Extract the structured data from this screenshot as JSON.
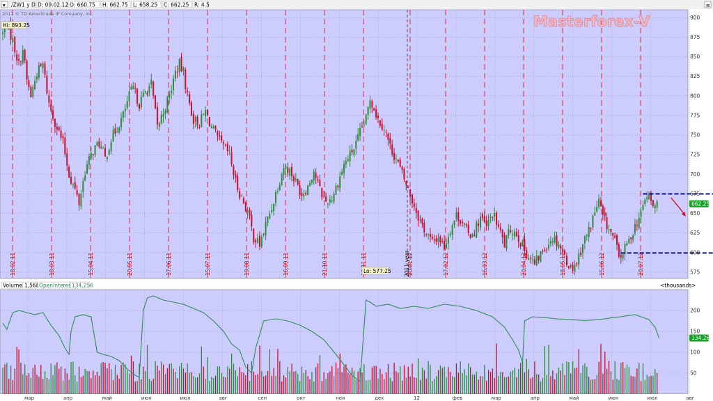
{
  "header": {
    "symbol": "/ZW1 y D",
    "date": "D: 09.02.12",
    "open": "O: 660.75",
    "high": "H: 662.75",
    "low": "L: 658.25",
    "close": "C: 662.25",
    "range": "R: 4.5",
    "copyright": "2011 © TD Ameritrade IP Company, Inc."
  },
  "watermark": "Masterforex-V",
  "price_panel": {
    "hi_label": "Hi: 893.25",
    "lo_label": "Lo: 577.25",
    "last_price_tag": "662.25",
    "year_label": "2011 year",
    "y_ticks": [
      "900",
      "875",
      "850",
      "825",
      "800",
      "775",
      "750",
      "725",
      "700",
      "675",
      "650",
      "625",
      "600",
      "575"
    ],
    "vertical_date_labels": [
      "18.02.11",
      "18.03.11",
      "15.04.11",
      "20.05.11",
      "17.06.11",
      "15.07.11",
      "19.08.11",
      "16.09.11",
      "21.10.11",
      "18.11.11",
      "20.01.12",
      "17.02.12",
      "16.03.12",
      "20.04.12",
      "18.05.12",
      "15.06.12",
      "20.07.12"
    ],
    "colors": {
      "background": "#cccdfc",
      "grid": "#8a8ab0",
      "vline": "#e8132b",
      "up": "#2e8b3c",
      "down": "#c8102e",
      "level_lines": "#10108a",
      "arrow": "#c8102e",
      "last_tag": "#18a028"
    }
  },
  "volume_panel": {
    "legend_volume": "Volume",
    "legend_volume_value": "1,568",
    "legend_oi": "OpenInterest",
    "legend_oi_value": "134,256",
    "units": "<thousands>",
    "y_ticks": [
      "200",
      "150",
      "100",
      "50"
    ],
    "last_oi_tag": "134.26",
    "colors": {
      "oi_line": "#2e8b57",
      "vol_up": "#2e8b3c",
      "vol_down": "#c8102e"
    }
  },
  "x_axis": {
    "month_labels": [
      "мар",
      "апр",
      "май",
      "июн",
      "июл",
      "авг",
      "сен",
      "окт",
      "ноя",
      "дек",
      "12",
      "фев",
      "мар",
      "апр",
      "май",
      "июн",
      "июл",
      "авг"
    ]
  },
  "chart_data": {
    "type": "candlestick",
    "period": "D",
    "price_range": [
      567,
      910
    ],
    "price_anchors": [
      [
        0,
        880
      ],
      [
        2,
        893
      ],
      [
        5,
        870
      ],
      [
        8,
        840
      ],
      [
        10,
        860
      ],
      [
        12,
        820
      ],
      [
        14,
        800
      ],
      [
        17,
        830
      ],
      [
        20,
        840
      ],
      [
        23,
        790
      ],
      [
        27,
        760
      ],
      [
        30,
        740
      ],
      [
        33,
        700
      ],
      [
        36,
        680
      ],
      [
        38,
        663
      ],
      [
        41,
        705
      ],
      [
        45,
        730
      ],
      [
        48,
        740
      ],
      [
        51,
        720
      ],
      [
        54,
        745
      ],
      [
        57,
        760
      ],
      [
        60,
        775
      ],
      [
        63,
        800
      ],
      [
        65,
        810
      ],
      [
        68,
        790
      ],
      [
        71,
        805
      ],
      [
        74,
        815
      ],
      [
        77,
        760
      ],
      [
        80,
        780
      ],
      [
        83,
        800
      ],
      [
        86,
        830
      ],
      [
        88,
        840
      ],
      [
        90,
        830
      ],
      [
        92,
        800
      ],
      [
        95,
        770
      ],
      [
        98,
        765
      ],
      [
        101,
        780
      ],
      [
        104,
        760
      ],
      [
        107,
        745
      ],
      [
        110,
        735
      ],
      [
        113,
        725
      ],
      [
        116,
        690
      ],
      [
        119,
        670
      ],
      [
        122,
        652
      ],
      [
        125,
        620
      ],
      [
        128,
        610
      ],
      [
        131,
        635
      ],
      [
        134,
        658
      ],
      [
        137,
        685
      ],
      [
        140,
        710
      ],
      [
        143,
        705
      ],
      [
        146,
        690
      ],
      [
        149,
        675
      ],
      [
        152,
        685
      ],
      [
        155,
        705
      ],
      [
        158,
        680
      ],
      [
        161,
        665
      ],
      [
        164,
        670
      ],
      [
        167,
        690
      ],
      [
        170,
        712
      ],
      [
        173,
        725
      ],
      [
        176,
        738
      ],
      [
        179,
        760
      ],
      [
        181,
        770
      ],
      [
        183,
        797
      ],
      [
        185,
        785
      ],
      [
        187,
        770
      ],
      [
        190,
        760
      ],
      [
        193,
        735
      ],
      [
        196,
        720
      ],
      [
        199,
        700
      ],
      [
        202,
        680
      ],
      [
        205,
        660
      ],
      [
        208,
        640
      ],
      [
        211,
        625
      ],
      [
        214,
        613
      ],
      [
        217,
        620
      ],
      [
        220,
        608
      ],
      [
        223,
        630
      ],
      [
        226,
        648
      ],
      [
        229,
        640
      ],
      [
        232,
        622
      ],
      [
        235,
        628
      ],
      [
        238,
        645
      ],
      [
        241,
        632
      ],
      [
        244,
        650
      ],
      [
        247,
        632
      ],
      [
        250,
        610
      ],
      [
        253,
        630
      ],
      [
        256,
        625
      ],
      [
        259,
        608
      ],
      [
        262,
        595
      ],
      [
        265,
        585
      ],
      [
        268,
        598
      ],
      [
        271,
        610
      ],
      [
        274,
        620
      ],
      [
        277,
        612
      ],
      [
        280,
        595
      ],
      [
        283,
        580
      ],
      [
        286,
        588
      ],
      [
        289,
        612
      ],
      [
        292,
        628
      ],
      [
        295,
        652
      ],
      [
        297,
        665
      ],
      [
        299,
        645
      ],
      [
        302,
        630
      ],
      [
        305,
        615
      ],
      [
        307,
        593
      ],
      [
        309,
        600
      ],
      [
        312,
        615
      ],
      [
        315,
        635
      ],
      [
        318,
        648
      ],
      [
        320,
        670
      ],
      [
        322,
        672
      ],
      [
        324,
        658
      ],
      [
        326,
        662
      ]
    ],
    "levels": [
      {
        "name": "resistance",
        "price": 675,
        "from_x": 319,
        "to_x": 360
      },
      {
        "name": "support",
        "price": 599.5,
        "from_x": 308,
        "to_x": 360
      }
    ],
    "open_interest_k": [
      [
        0,
        170
      ],
      [
        2,
        155
      ],
      [
        5,
        195
      ],
      [
        8,
        200
      ],
      [
        12,
        195
      ],
      [
        16,
        190
      ],
      [
        20,
        195
      ],
      [
        24,
        165
      ],
      [
        28,
        140
      ],
      [
        31,
        110
      ],
      [
        33,
        95
      ],
      [
        34,
        150
      ],
      [
        36,
        185
      ],
      [
        40,
        190
      ],
      [
        44,
        185
      ],
      [
        47,
        100
      ],
      [
        50,
        95
      ],
      [
        54,
        90
      ],
      [
        58,
        80
      ],
      [
        62,
        60
      ],
      [
        66,
        45
      ],
      [
        68,
        40
      ],
      [
        70,
        200
      ],
      [
        72,
        230
      ],
      [
        75,
        235
      ],
      [
        80,
        225
      ],
      [
        85,
        220
      ],
      [
        90,
        215
      ],
      [
        95,
        205
      ],
      [
        100,
        195
      ],
      [
        105,
        175
      ],
      [
        110,
        150
      ],
      [
        114,
        120
      ],
      [
        118,
        105
      ],
      [
        121,
        65
      ],
      [
        124,
        50
      ],
      [
        126,
        110
      ],
      [
        130,
        175
      ],
      [
        136,
        180
      ],
      [
        142,
        175
      ],
      [
        148,
        165
      ],
      [
        154,
        150
      ],
      [
        160,
        130
      ],
      [
        166,
        95
      ],
      [
        170,
        70
      ],
      [
        174,
        45
      ],
      [
        178,
        30
      ],
      [
        181,
        225
      ],
      [
        183,
        220
      ],
      [
        186,
        210
      ],
      [
        192,
        215
      ],
      [
        198,
        205
      ],
      [
        205,
        210
      ],
      [
        212,
        205
      ],
      [
        220,
        215
      ],
      [
        228,
        210
      ],
      [
        236,
        200
      ],
      [
        244,
        185
      ],
      [
        250,
        160
      ],
      [
        254,
        130
      ],
      [
        257,
        105
      ],
      [
        259,
        75
      ],
      [
        260,
        175
      ],
      [
        264,
        185
      ],
      [
        270,
        183
      ],
      [
        276,
        180
      ],
      [
        284,
        178
      ],
      [
        290,
        176
      ],
      [
        296,
        178
      ],
      [
        300,
        180
      ],
      [
        304,
        183
      ],
      [
        308,
        185
      ],
      [
        312,
        188
      ],
      [
        315,
        190
      ],
      [
        318,
        185
      ],
      [
        322,
        178
      ],
      [
        325,
        160
      ],
      [
        327,
        134.26
      ]
    ],
    "volume_k_baseline": [
      30,
      100
    ]
  }
}
